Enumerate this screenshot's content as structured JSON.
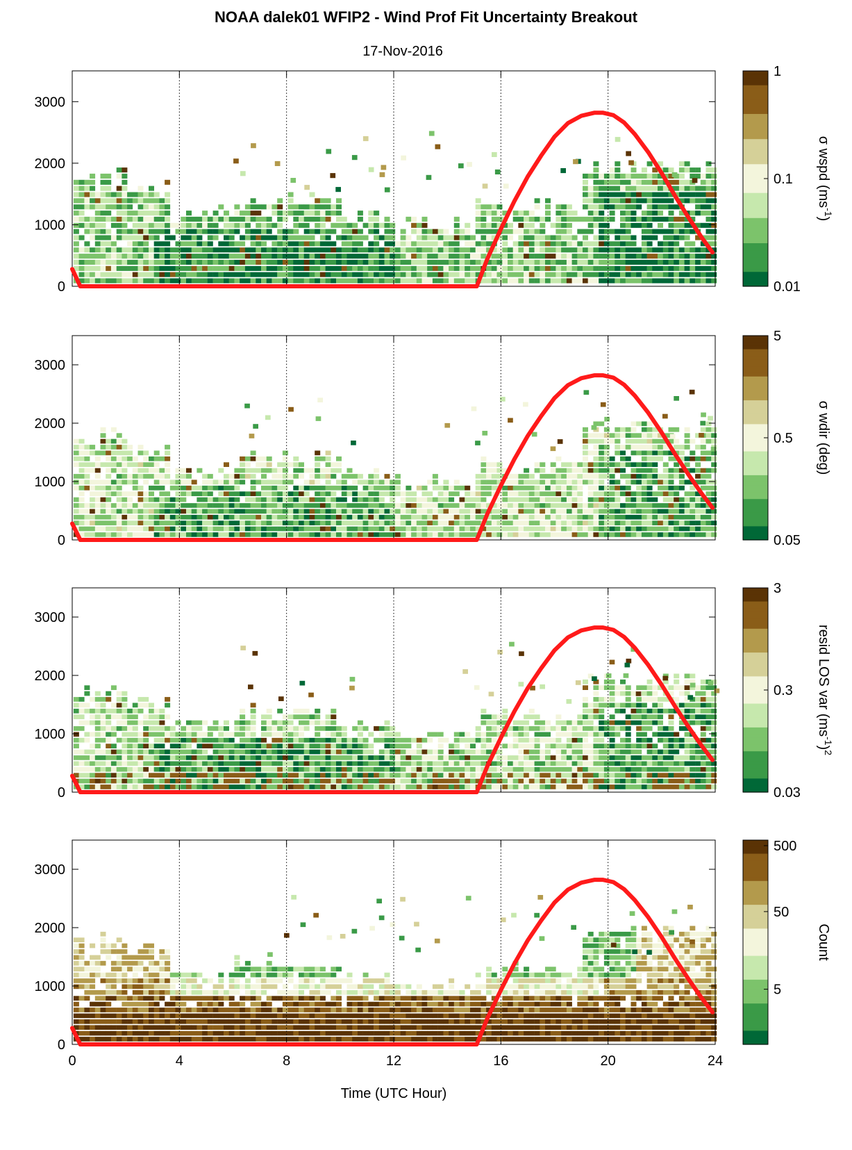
{
  "title": "NOAA dalek01 WFIP2 - Wind Prof Fit Uncertainty Breakout",
  "subtitle": "17-Nov-2016",
  "colors": {
    "line": "#ff1a1a",
    "cmap": [
      "#006837",
      "#3a9a47",
      "#7cc36b",
      "#c6e8ad",
      "#f3f5dc",
      "#d5d098",
      "#b39a4c",
      "#8a5d18",
      "#5a3305"
    ]
  },
  "chart_data": {
    "type": "heatmap",
    "xlabel": "Time (UTC Hour)",
    "xlim": [
      0,
      24
    ],
    "x_ticks": [
      "0",
      "4",
      "8",
      "12",
      "16",
      "20",
      "24"
    ],
    "ylim": [
      0,
      3500
    ],
    "y_ticks": [
      "0",
      "1000",
      "2000",
      "3000"
    ],
    "grid": "vertical dotted lines at 4-hour ticks",
    "overlay_line": {
      "x": [
        0.0,
        0.3,
        15.1,
        15.5,
        16.0,
        16.5,
        17.0,
        17.5,
        18.0,
        18.5,
        19.0,
        19.5,
        19.8,
        20.2,
        20.6,
        21.0,
        21.5,
        22.0,
        22.5,
        23.0,
        23.5,
        23.9
      ],
      "y": [
        280,
        0,
        0,
        450,
        930,
        1380,
        1780,
        2120,
        2430,
        2650,
        2770,
        2820,
        2820,
        2780,
        2660,
        2470,
        2180,
        1840,
        1470,
        1120,
        790,
        550
      ]
    },
    "panels": [
      {
        "colorbar_label": "σ wspd (ms",
        "colorbar_label_sup": "-1",
        "colorbar_label_end": ")",
        "colorbar_scale": "log",
        "colorbar_ticks": [
          "1",
          "0.1",
          "0.01"
        ]
      },
      {
        "colorbar_label": "σ wdir (deg)",
        "colorbar_scale": "log",
        "colorbar_ticks": [
          "5",
          "0.5",
          "0.05"
        ]
      },
      {
        "colorbar_label": "resid LOS var (ms",
        "colorbar_label_sup": "-1",
        "colorbar_label_end": ")",
        "colorbar_label_sup2": "2",
        "colorbar_scale": "log",
        "colorbar_ticks": [
          "3",
          "0.3",
          "0.03"
        ]
      },
      {
        "colorbar_label": "Count",
        "colorbar_scale": "log",
        "colorbar_ticks": [
          "500",
          "50",
          "5"
        ]
      }
    ]
  }
}
